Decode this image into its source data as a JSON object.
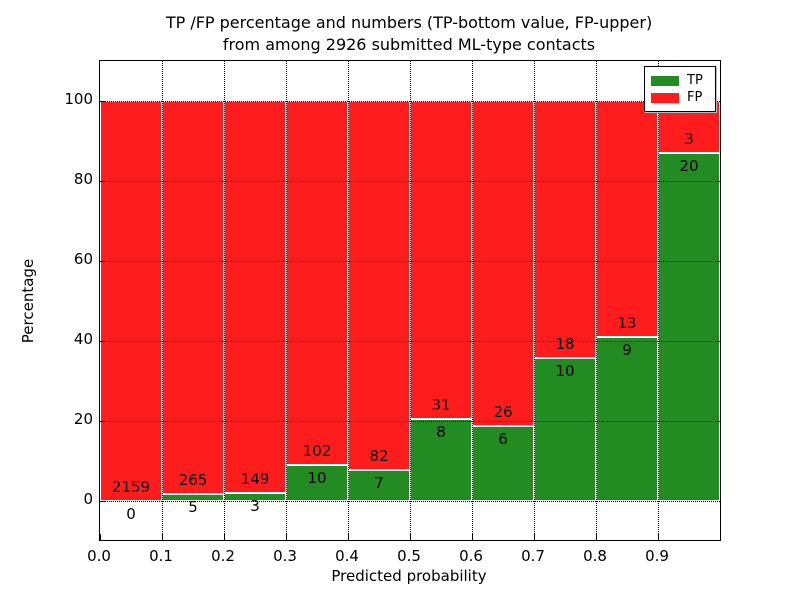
{
  "title": {
    "line1": "TP /FP percentage and numbers (TP-bottom value, FP-upper)",
    "line2": "from among 2926 submitted ML-type contacts"
  },
  "chart_data": {
    "type": "bar",
    "subtype": "stacked-percentage",
    "title": "TP /FP percentage and numbers (TP-bottom value, FP-upper) from among 2926 submitted ML-type contacts",
    "xlabel": "Predicted probability",
    "ylabel": "Percentage",
    "xlim": [
      0.0,
      1.0
    ],
    "ylim": [
      -10,
      110
    ],
    "bin_width": 0.1,
    "categories": [
      "0.0",
      "0.1",
      "0.2",
      "0.3",
      "0.4",
      "0.5",
      "0.6",
      "0.7",
      "0.8",
      "0.9"
    ],
    "series": [
      {
        "name": "TP",
        "color": "#228B22",
        "values": [
          0,
          5,
          3,
          10,
          7,
          8,
          6,
          10,
          9,
          20
        ]
      },
      {
        "name": "FP",
        "color": "#FF1C1C",
        "values": [
          2159,
          265,
          149,
          102,
          82,
          31,
          26,
          18,
          13,
          3
        ]
      }
    ],
    "tp_percent": [
      0.0,
      1.85,
      1.97,
      8.93,
      7.87,
      20.51,
      18.75,
      35.71,
      40.91,
      86.96
    ],
    "total_contacts": 2926,
    "xticks": [
      "0.0",
      "0.1",
      "0.2",
      "0.3",
      "0.4",
      "0.5",
      "0.6",
      "0.7",
      "0.8",
      "0.9"
    ],
    "yticks": [
      0,
      20,
      40,
      60,
      80,
      100
    ],
    "grid": "dotted",
    "bar_edge_color": "#ffffff",
    "legend": {
      "position": "upper-right",
      "entries": [
        {
          "label": "TP",
          "color": "#228B22"
        },
        {
          "label": "FP",
          "color": "#FF1C1C"
        }
      ]
    }
  }
}
